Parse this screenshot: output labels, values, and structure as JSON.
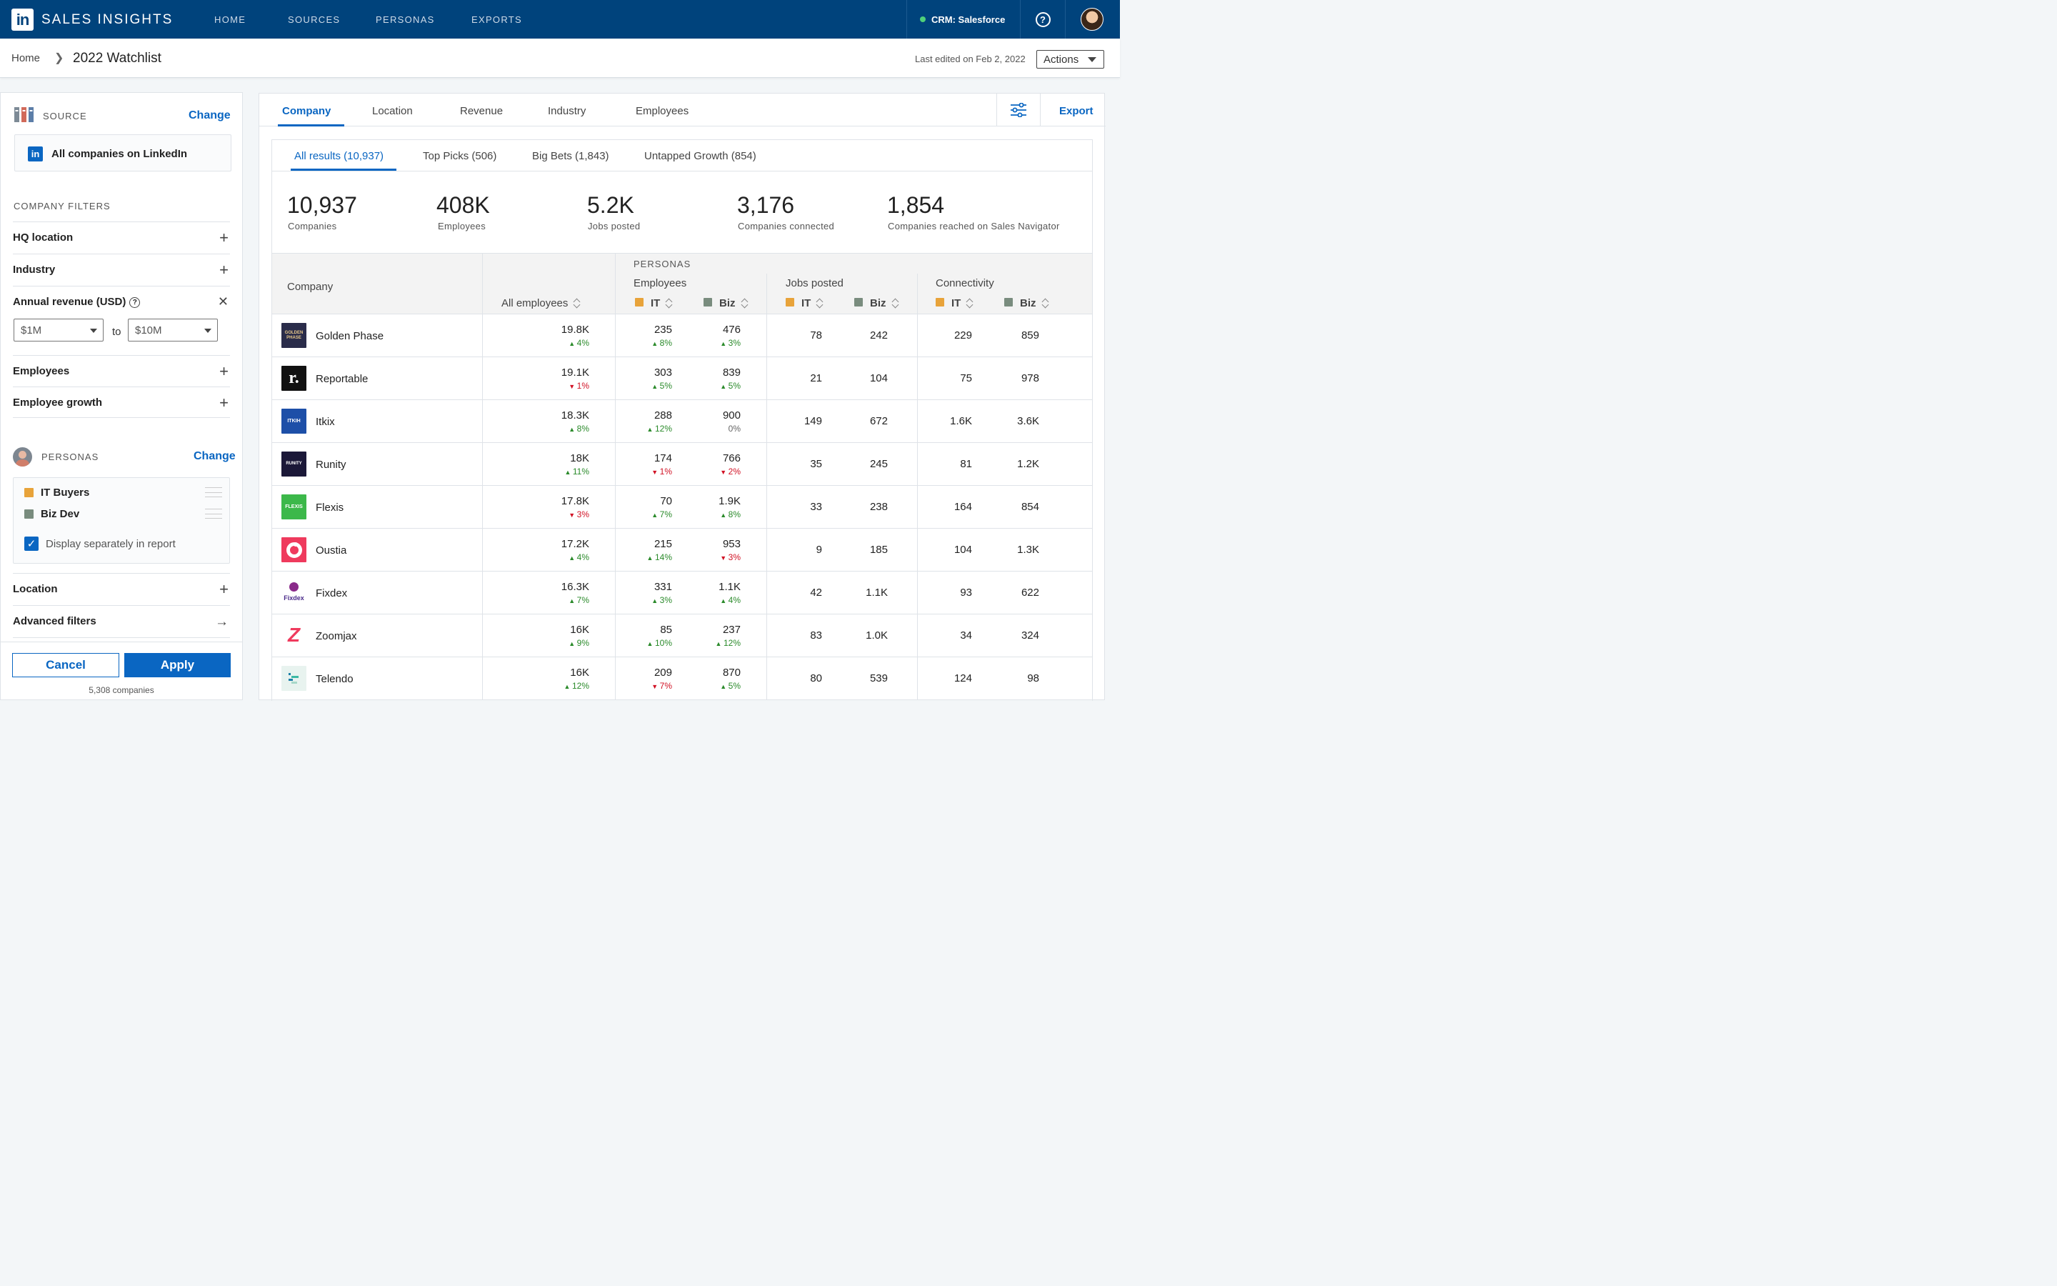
{
  "app": {
    "title": "SALES INSIGHTS",
    "logo": "in"
  },
  "nav": [
    "HOME",
    "SOURCES",
    "PERSONAS",
    "EXPORTS"
  ],
  "crm": {
    "label": "CRM: Salesforce",
    "status_color": "#4fd07a"
  },
  "breadcrumb": {
    "home": "Home",
    "separator": "❯",
    "current": "2022 Watchlist"
  },
  "last_edited": "Last edited on Feb 2, 2022",
  "actions_label": "Actions",
  "source": {
    "label": "SOURCE",
    "change": "Change",
    "value": "All companies on LinkedIn",
    "value_icon": "in"
  },
  "company_filters": {
    "label": "COMPANY FILTERS",
    "hq_location": "HQ location",
    "industry": "Industry",
    "annual_revenue": "Annual revenue (USD)",
    "revenue_from": "$1M",
    "revenue_to_word": "to",
    "revenue_to": "$10M",
    "employees": "Employees",
    "employee_growth": "Employee growth"
  },
  "personas": {
    "label": "PERSONAS",
    "change": "Change",
    "items": [
      {
        "name": "IT Buyers",
        "color": "#e8a33a"
      },
      {
        "name": "Biz Dev",
        "color": "#798c7e"
      }
    ],
    "display_separately": "Display separately in report"
  },
  "more_filters": {
    "location": "Location",
    "advanced": "Advanced filters"
  },
  "buttons": {
    "cancel": "Cancel",
    "apply": "Apply"
  },
  "company_count": "5,308 companies",
  "tabs": [
    "Company",
    "Location",
    "Revenue",
    "Industry",
    "Employees"
  ],
  "export": "Export",
  "subtabs": [
    "All results (10,937)",
    "Top Picks (506)",
    "Big Bets (1,843)",
    "Untapped Growth (854)"
  ],
  "stats": [
    {
      "value": "10,937",
      "label": "Companies"
    },
    {
      "value": "408K",
      "label": "Employees"
    },
    {
      "value": "5.2K",
      "label": "Jobs posted"
    },
    {
      "value": "3,176",
      "label": "Companies connected"
    },
    {
      "value": "1,854",
      "label": "Companies reached on Sales Navigator"
    }
  ],
  "table": {
    "company_header": "Company",
    "all_employees_header": "All employees",
    "personas_header": "PERSONAS",
    "employees_group": "Employees",
    "jobs_group": "Jobs posted",
    "connectivity_group": "Connectivity",
    "it": "IT",
    "biz": "Biz",
    "rows": [
      {
        "name": "Golden Phase",
        "all": "19.8K",
        "all_d": "4%",
        "all_dir": "up",
        "it": "235",
        "it_d": "8%",
        "it_dir": "up",
        "biz": "476",
        "biz_d": "3%",
        "biz_dir": "up",
        "jobs_it": "78",
        "jobs_biz": "242",
        "conn_it": "229",
        "conn_biz": "859"
      },
      {
        "name": "Reportable",
        "all": "19.1K",
        "all_d": "1%",
        "all_dir": "dn",
        "it": "303",
        "it_d": "5%",
        "it_dir": "up",
        "biz": "839",
        "biz_d": "5%",
        "biz_dir": "up",
        "jobs_it": "21",
        "jobs_biz": "104",
        "conn_it": "75",
        "conn_biz": "978"
      },
      {
        "name": "Itkix",
        "all": "18.3K",
        "all_d": "8%",
        "all_dir": "up",
        "it": "288",
        "it_d": "12%",
        "it_dir": "up",
        "biz": "900",
        "biz_d": "0%",
        "biz_dir": "flat",
        "jobs_it": "149",
        "jobs_biz": "672",
        "conn_it": "1.6K",
        "conn_biz": "3.6K"
      },
      {
        "name": "Runity",
        "all": "18K",
        "all_d": "11%",
        "all_dir": "up",
        "it": "174",
        "it_d": "1%",
        "it_dir": "dn",
        "biz": "766",
        "biz_d": "2%",
        "biz_dir": "dn",
        "jobs_it": "35",
        "jobs_biz": "245",
        "conn_it": "81",
        "conn_biz": "1.2K"
      },
      {
        "name": "Flexis",
        "all": "17.8K",
        "all_d": "3%",
        "all_dir": "dn",
        "it": "70",
        "it_d": "7%",
        "it_dir": "up",
        "biz": "1.9K",
        "biz_d": "8%",
        "biz_dir": "up",
        "jobs_it": "33",
        "jobs_biz": "238",
        "conn_it": "164",
        "conn_biz": "854"
      },
      {
        "name": "Oustia",
        "all": "17.2K",
        "all_d": "4%",
        "all_dir": "up",
        "it": "215",
        "it_d": "14%",
        "it_dir": "up",
        "biz": "953",
        "biz_d": "3%",
        "biz_dir": "dn",
        "jobs_it": "9",
        "jobs_biz": "185",
        "conn_it": "104",
        "conn_biz": "1.3K"
      },
      {
        "name": "Fixdex",
        "all": "16.3K",
        "all_d": "7%",
        "all_dir": "up",
        "it": "331",
        "it_d": "3%",
        "it_dir": "up",
        "biz": "1.1K",
        "biz_d": "4%",
        "biz_dir": "up",
        "jobs_it": "42",
        "jobs_biz": "1.1K",
        "conn_it": "93",
        "conn_biz": "622"
      },
      {
        "name": "Zoomjax",
        "all": "16K",
        "all_d": "9%",
        "all_dir": "up",
        "it": "85",
        "it_d": "10%",
        "it_dir": "up",
        "biz": "237",
        "biz_d": "12%",
        "biz_dir": "up",
        "jobs_it": "83",
        "jobs_biz": "1.0K",
        "conn_it": "34",
        "conn_biz": "324"
      },
      {
        "name": "Telendo",
        "all": "16K",
        "all_d": "12%",
        "all_dir": "up",
        "it": "209",
        "it_d": "7%",
        "it_dir": "dn",
        "biz": "870",
        "biz_d": "5%",
        "biz_dir": "up",
        "jobs_it": "80",
        "jobs_biz": "539",
        "conn_it": "124",
        "conn_biz": "98"
      }
    ],
    "logo_labels": [
      "GOLDEN PHASE",
      "r.",
      "ITKIH",
      "RUNITY",
      "FLEXIS",
      "",
      "Fixdex",
      "Z",
      ""
    ]
  },
  "colors": {
    "brand": "#00437c",
    "accent": "#0a66c2",
    "up": "#2a8a2a",
    "down": "#d11124"
  }
}
